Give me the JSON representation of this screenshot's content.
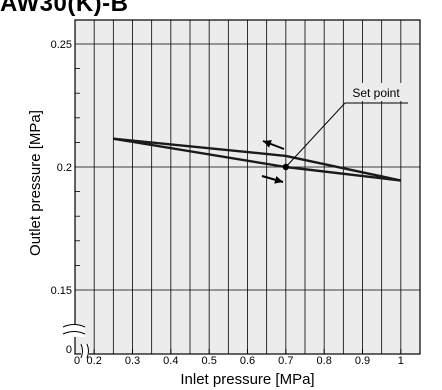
{
  "header": {
    "title": "AW30(K)-B"
  },
  "chart_data": {
    "type": "line",
    "title": "",
    "xlabel": "Inlet pressure [MPa]",
    "ylabel": "Outlet pressure [MPa]",
    "xlim": [
      0.15,
      1.05
    ],
    "ylim": [
      0.15,
      0.255
    ],
    "x_ticks": [
      0.2,
      0.3,
      0.4,
      0.5,
      0.6,
      0.7,
      0.8,
      0.9,
      1
    ],
    "x_tick_labels": [
      "0.2",
      "0.3",
      "0.4",
      "0.5",
      "0.6",
      "0.7",
      "0.8",
      "0.9",
      "1"
    ],
    "y_ticks": [
      0.15,
      0.2,
      0.25
    ],
    "y_tick_labels": [
      "0.15",
      "0.2",
      "0.25"
    ],
    "origin_labels": {
      "x": "0",
      "y": "0"
    },
    "grid": true,
    "axis_break": true,
    "series": [
      {
        "x": [
          0.25,
          0.7,
          1.0
        ],
        "y": [
          0.2115,
          0.2045,
          0.1945
        ]
      },
      {
        "x": [
          0.25,
          0.7,
          1.0
        ],
        "y": [
          0.2115,
          0.2,
          0.1945
        ]
      }
    ],
    "annotations": [
      {
        "text": "Set point",
        "x": 0.7,
        "y": 0.2
      }
    ]
  }
}
